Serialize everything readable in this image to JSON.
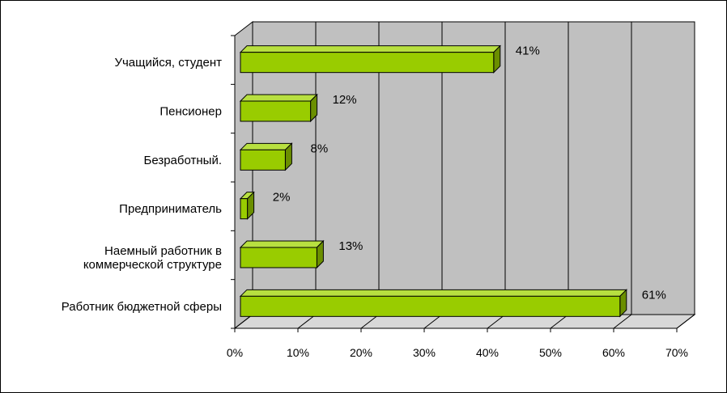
{
  "chart_data": {
    "type": "bar",
    "orientation": "horizontal",
    "three_d": true,
    "categories": [
      [
        "Учащийся, студент"
      ],
      [
        "Пенсионер"
      ],
      [
        "Безработный."
      ],
      [
        "Предприниматель"
      ],
      [
        "Наемный работник в",
        "коммерческой структуре"
      ],
      [
        "Работник бюджетной сферы"
      ]
    ],
    "values": [
      41,
      12,
      8,
      2,
      13,
      61
    ],
    "data_labels": [
      "41%",
      "12%",
      "8%",
      "2%",
      "13%",
      "61%"
    ],
    "x_ticks": [
      "0%",
      "10%",
      "20%",
      "30%",
      "40%",
      "50%",
      "60%",
      "70%"
    ],
    "xlim": [
      0,
      70
    ],
    "grid": true,
    "legend": "none",
    "colors": {
      "bar_front": "#99CC00",
      "bar_top": "#B8E040",
      "bar_side": "#6B8F00",
      "wall": "#C0C0C0",
      "floor": "#D8D8D8",
      "grid": "#000000"
    }
  }
}
